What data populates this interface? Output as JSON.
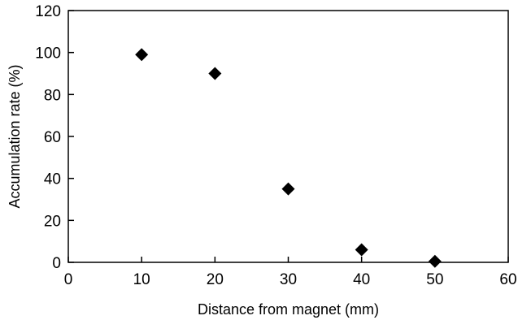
{
  "chart_data": {
    "type": "scatter",
    "title": "",
    "xlabel": "Distance from magnet (mm)",
    "ylabel": "Accumulation rate (%)",
    "xlim": [
      0,
      60
    ],
    "ylim": [
      0,
      120
    ],
    "xticks": [
      0,
      10,
      20,
      30,
      40,
      50,
      60
    ],
    "yticks": [
      0,
      20,
      40,
      60,
      80,
      100,
      120
    ],
    "grid": false,
    "marker": "diamond",
    "marker_color": "#000000",
    "series": [
      {
        "x": [
          10,
          20,
          30,
          40,
          50
        ],
        "y": [
          99,
          90,
          35,
          6,
          0.5
        ]
      }
    ]
  }
}
